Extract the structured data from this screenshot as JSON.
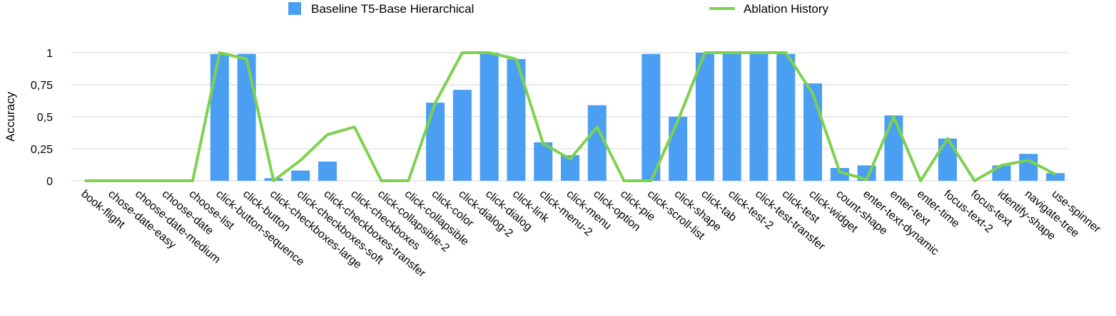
{
  "chart_data": {
    "type": "bar",
    "ylabel": "Accuracy",
    "ylim": [
      0,
      1
    ],
    "yticks": [
      0,
      0.25,
      0.5,
      0.75,
      1
    ],
    "ytick_labels": [
      "0",
      "0,25",
      "0,5",
      "0,75",
      "1"
    ],
    "grid": true,
    "legend_position": "top",
    "categories": [
      "book-flight",
      "chose-date-easy",
      "choose-date-medium",
      "choose-date",
      "choose-list",
      "click-button-sequence",
      "click-button",
      "click-checkboxes-large",
      "click-checkboxes-soft",
      "click-checkboxes-transfer",
      "click-checkboxes",
      "click-collapsible-2",
      "click-collapsible",
      "click-color",
      "click-dialog-2",
      "click-dialog",
      "click-link",
      "click-menu-2",
      "click-menu",
      "click-option",
      "click-pie",
      "click-scroll-list",
      "click-shape",
      "click-tab",
      "click-test-2",
      "click-test-transfer",
      "click-test",
      "click-widget",
      "count-shape",
      "enter-text-dynamic",
      "enter-text",
      "enter-time",
      "focus-text-2",
      "focus-text",
      "identify-shape",
      "navigate-tree",
      "use-spinner"
    ],
    "series": [
      {
        "name": "Baseline T5-Base Hierarchical",
        "type": "bar",
        "color": "#4a9ff2",
        "values": [
          0,
          0,
          0,
          0,
          0,
          0.99,
          0.99,
          0.02,
          0.08,
          0.15,
          0,
          0,
          0,
          0.61,
          0.71,
          1.0,
          0.95,
          0.3,
          0.2,
          0.59,
          0,
          0.99,
          0.5,
          1.0,
          1.0,
          1.0,
          0.99,
          0.76,
          0.1,
          0.12,
          0.51,
          0,
          0.33,
          0,
          0.12,
          0.21,
          0.06
        ]
      },
      {
        "name": "Ablation History",
        "type": "line",
        "color": "#7ed14f",
        "values": [
          0,
          0,
          0,
          0,
          0,
          1.0,
          0.95,
          0,
          0.16,
          0.36,
          0.42,
          0,
          0,
          0.61,
          1.0,
          1.0,
          0.95,
          0.29,
          0.17,
          0.42,
          0,
          0,
          0.47,
          1.0,
          1.0,
          1.0,
          1.0,
          0.68,
          0.07,
          0.01,
          0.5,
          0,
          0.33,
          0,
          0.12,
          0.16,
          0.05
        ]
      }
    ]
  }
}
